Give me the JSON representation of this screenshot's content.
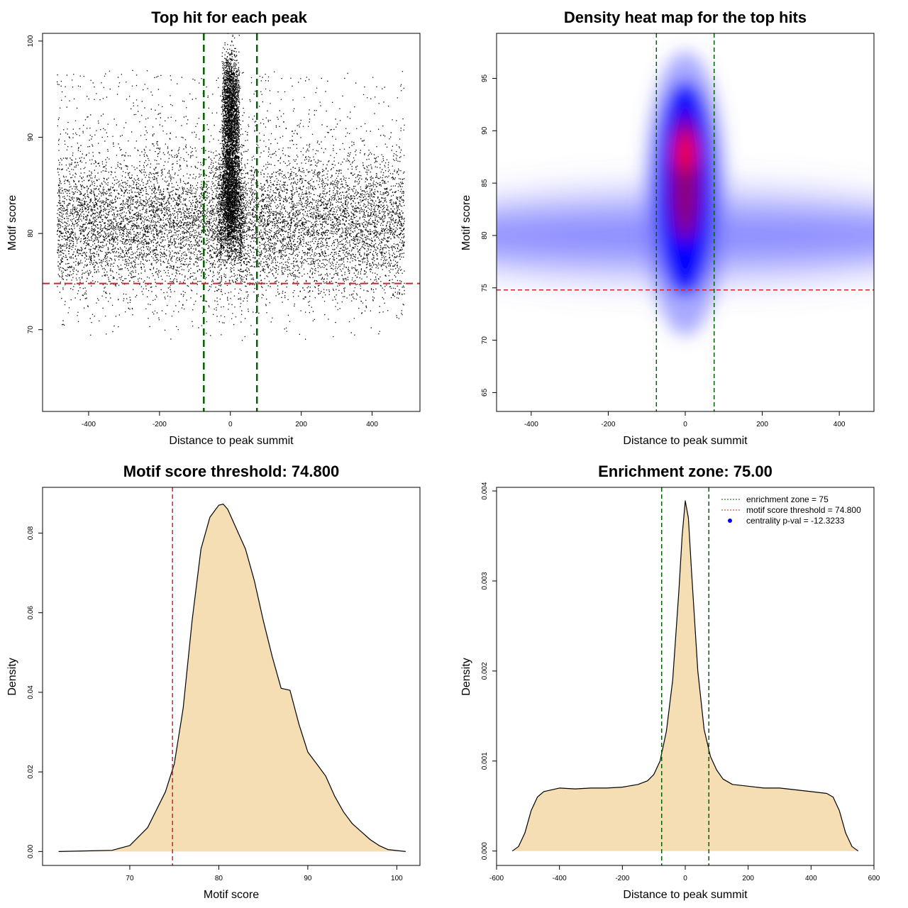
{
  "threshold": 74.8,
  "enrichment_zone": 75,
  "chart_data": [
    {
      "id": "scatter",
      "type": "scatter",
      "title": "Top hit for each peak",
      "xlabel": "Distance to peak summit",
      "ylabel": "Motif score",
      "xlim": [
        -530,
        535
      ],
      "ylim": [
        61.5,
        100.8
      ],
      "xticks": [
        -400,
        -200,
        0,
        200,
        400
      ],
      "yticks": [
        70,
        80,
        90,
        100
      ],
      "vlines": [
        -75,
        75
      ],
      "hline": 74.8,
      "n_background_points": 10000,
      "n_central_points": 5000,
      "score_mean": 81,
      "score_sd": 3.8,
      "background_x_range": [
        -490,
        490
      ],
      "central_x_sd": 15,
      "central_score_range": [
        80,
        97
      ],
      "point_color": "#000000",
      "vline_color": "#006400",
      "hline_color": "#cd2626"
    },
    {
      "id": "heatmap",
      "type": "heatmap",
      "title": "Density heat map for the top hits",
      "xlabel": "Distance to peak summit",
      "ylabel": "Motif score",
      "xlim": [
        -490,
        490
      ],
      "ylim": [
        63.2,
        99.3
      ],
      "xticks": [
        -400,
        -200,
        0,
        200,
        400
      ],
      "yticks": [
        65,
        70,
        75,
        80,
        85,
        90,
        95
      ],
      "vlines": [
        -75,
        75
      ],
      "hline": 74.8,
      "band_score_center": 80,
      "peak_score_center": 88,
      "colors": [
        "#ffffff",
        "#7070ff",
        "#0000ff",
        "#ff0000"
      ],
      "vline_color": "#006400",
      "hline_color": "#cd2626"
    },
    {
      "id": "score-density",
      "type": "area",
      "title": "Motif score threshold: 74.800",
      "xlabel": "Motif score",
      "ylabel": "Density",
      "xlim": [
        60.2,
        102.6
      ],
      "ylim": [
        -0.0035,
        0.0915
      ],
      "xticks": [
        70,
        80,
        90,
        100
      ],
      "yticks": [
        0.0,
        0.02,
        0.04,
        0.06,
        0.08
      ],
      "ytick_labels": [
        "0.00",
        "0.02",
        "0.04",
        "0.06",
        "0.08"
      ],
      "vline": 74.8,
      "x": [
        62,
        68,
        70,
        72,
        74,
        75,
        76,
        77,
        78,
        79,
        80,
        80.5,
        81,
        82,
        83,
        84,
        85,
        86,
        87,
        88,
        89,
        90,
        91,
        92,
        93,
        94,
        95,
        96,
        97,
        98,
        99,
        101
      ],
      "y": [
        0.0,
        0.0003,
        0.0015,
        0.006,
        0.015,
        0.022,
        0.036,
        0.058,
        0.076,
        0.084,
        0.087,
        0.0873,
        0.086,
        0.081,
        0.076,
        0.068,
        0.058,
        0.049,
        0.041,
        0.0405,
        0.032,
        0.025,
        0.022,
        0.019,
        0.014,
        0.01,
        0.007,
        0.005,
        0.003,
        0.0015,
        0.0005,
        0.0
      ],
      "fill_color": "#f5deb3",
      "vline_color": "#cd2626"
    },
    {
      "id": "distance-density",
      "type": "area",
      "title": "Enrichment zone: 75.00",
      "xlabel": "Distance to peak summit",
      "ylabel": "Density",
      "xlim": [
        -600,
        600
      ],
      "ylim": [
        -0.00016,
        0.00404
      ],
      "xticks": [
        -600,
        -400,
        -200,
        0,
        200,
        400,
        600
      ],
      "yticks": [
        0.0,
        0.001,
        0.002,
        0.003,
        0.004
      ],
      "ytick_labels": [
        "0.000",
        "0.001",
        "0.002",
        "0.003",
        "0.004"
      ],
      "vlines": [
        -75,
        75
      ],
      "x": [
        -550,
        -530,
        -510,
        -490,
        -470,
        -450,
        -400,
        -350,
        -300,
        -250,
        -200,
        -150,
        -120,
        -100,
        -80,
        -60,
        -40,
        -20,
        -10,
        0,
        10,
        20,
        40,
        60,
        80,
        100,
        120,
        150,
        200,
        250,
        300,
        350,
        400,
        450,
        470,
        490,
        510,
        530,
        550
      ],
      "y": [
        0.0,
        5e-05,
        0.0002,
        0.00045,
        0.0006,
        0.00066,
        0.0007,
        0.00069,
        0.0007,
        0.0007,
        0.00071,
        0.00074,
        0.00078,
        0.00085,
        0.001,
        0.00133,
        0.0019,
        0.0029,
        0.0035,
        0.00389,
        0.0037,
        0.0031,
        0.002,
        0.00135,
        0.00105,
        0.0009,
        0.0008,
        0.00074,
        0.00072,
        0.0007,
        0.0007,
        0.00068,
        0.00066,
        0.00064,
        0.0006,
        0.00045,
        0.0002,
        5e-05,
        0.0
      ],
      "fill_color": "#f5deb3",
      "vline_color": "#006400",
      "legend": [
        {
          "label": "enrichment zone = 75",
          "symbol": "line",
          "color": "#006400"
        },
        {
          "label": "motif score threshold = 74.800",
          "symbol": "line",
          "color": "#cd2626"
        },
        {
          "label": "centrality p-val = -12.3233",
          "symbol": "point",
          "color": "#0000ff"
        }
      ]
    }
  ]
}
